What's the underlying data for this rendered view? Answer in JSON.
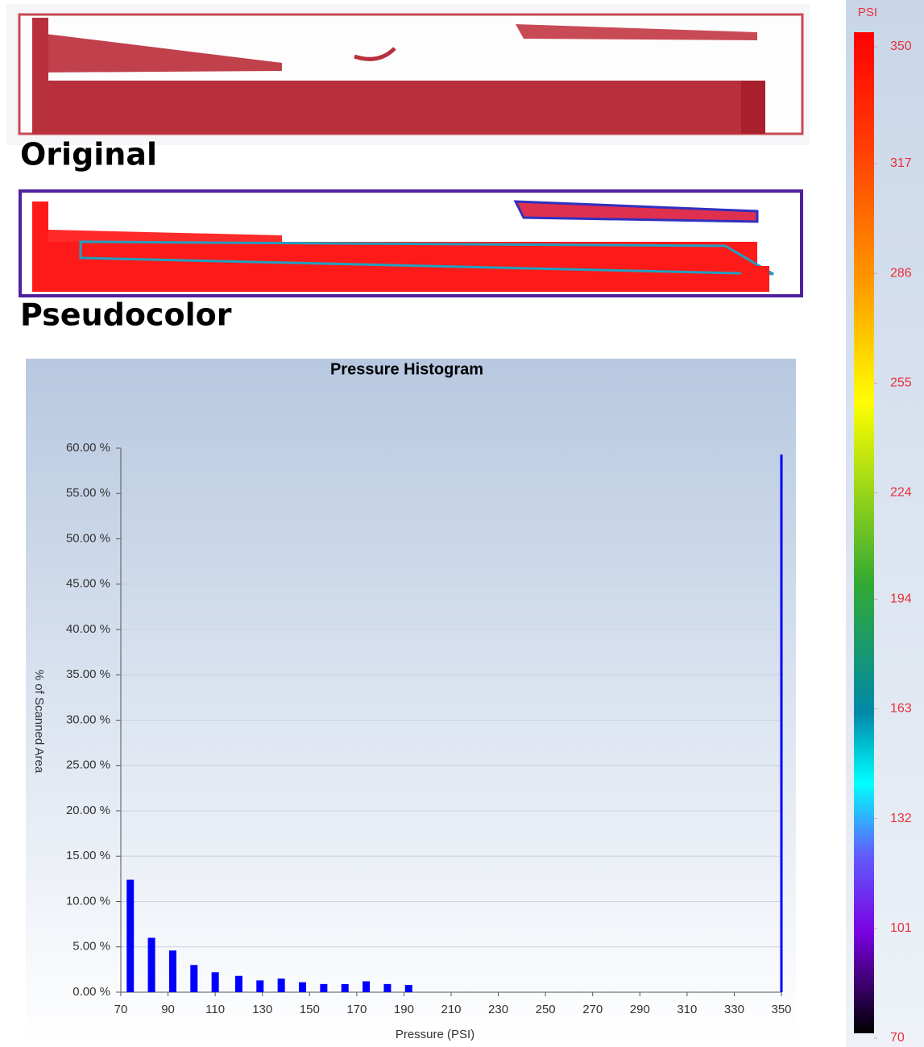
{
  "labels": {
    "original": "Original",
    "pseudocolor": "Pseudocolor"
  },
  "chart_data": [
    {
      "type": "bar",
      "title": "Pressure Histogram",
      "x_label": "Pressure (PSI)",
      "y_label": "% of Scanned Area",
      "x": [
        74,
        83,
        92,
        101,
        110,
        120,
        129,
        138,
        147,
        156,
        165,
        174,
        183,
        192,
        350
      ],
      "values": [
        12.4,
        6.0,
        4.6,
        3.0,
        2.2,
        1.8,
        1.3,
        1.5,
        1.1,
        0.9,
        0.9,
        1.2,
        0.9,
        0.8,
        59.3
      ],
      "color": "#0000ff",
      "grid": true,
      "xlim": [
        70,
        350
      ],
      "xticks": [
        70,
        90,
        110,
        130,
        150,
        170,
        190,
        210,
        230,
        250,
        270,
        290,
        310,
        330,
        350
      ],
      "ylim": [
        0,
        60
      ],
      "yticks": [
        {
          "value": 0,
          "label": "0.00 %"
        },
        {
          "value": 5,
          "label": "5.00 %"
        },
        {
          "value": 10,
          "label": "10.00 %"
        },
        {
          "value": 15,
          "label": "15.00 %"
        },
        {
          "value": 20,
          "label": "20.00 %"
        },
        {
          "value": 25,
          "label": "25.00 %"
        },
        {
          "value": 30,
          "label": "30.00 %"
        },
        {
          "value": 35,
          "label": "35.00 %"
        },
        {
          "value": 40,
          "label": "40.00 %"
        },
        {
          "value": 45,
          "label": "45.00 %"
        },
        {
          "value": 50,
          "label": "50.00 %"
        },
        {
          "value": 55,
          "label": "55.00 %"
        },
        {
          "value": 60,
          "label": "60.00 %"
        }
      ]
    },
    {
      "type": "colorbar",
      "title": "PSI",
      "ylim": [
        70,
        350
      ],
      "yticks": [
        350,
        317,
        286,
        255,
        224,
        194,
        163,
        132,
        101,
        70
      ],
      "label_color": "#e8303a"
    }
  ]
}
